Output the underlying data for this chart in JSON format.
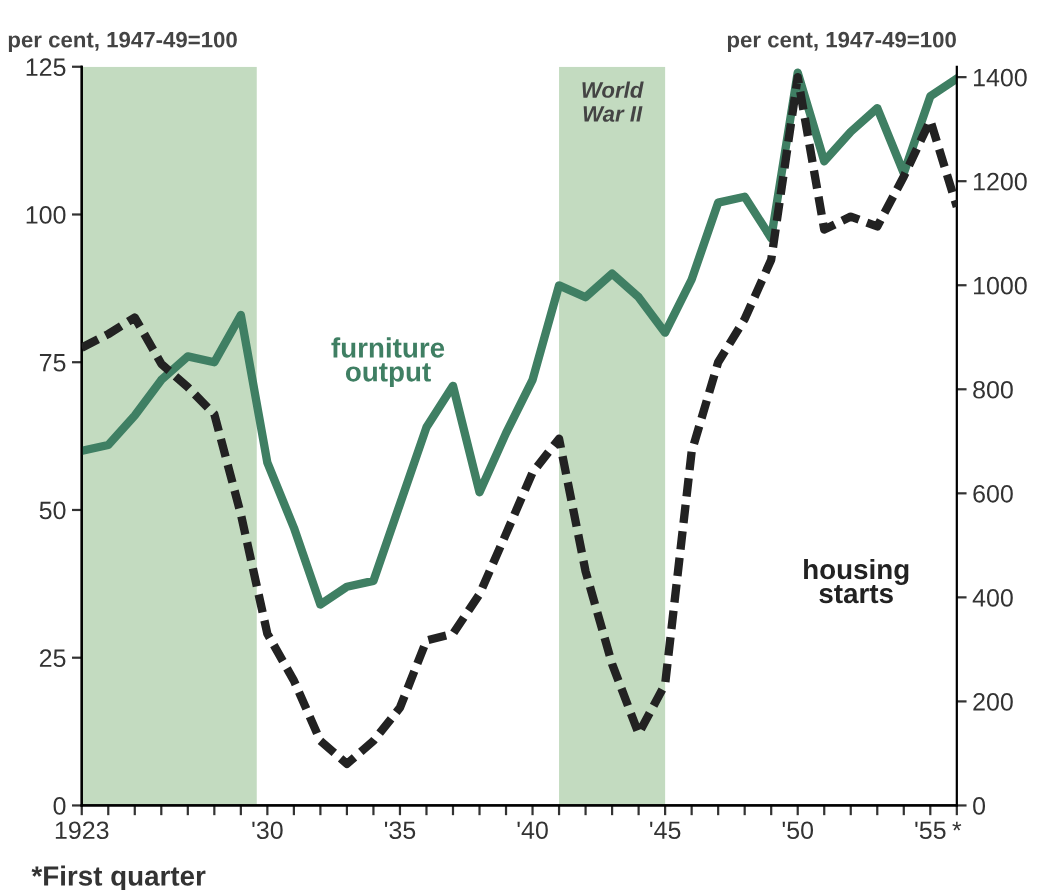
{
  "chart_data": {
    "type": "line",
    "ylabel": "per cent, 1947-49=100",
    "y2label": "per cent, 1947-49=100",
    "xlim": [
      1923,
      1956
    ],
    "xticks": [
      {
        "value": 1923,
        "label": "1923"
      },
      {
        "value": 1924,
        "label": null
      },
      {
        "value": 1925,
        "label": null
      },
      {
        "value": 1926,
        "label": null
      },
      {
        "value": 1927,
        "label": null
      },
      {
        "value": 1928,
        "label": null
      },
      {
        "value": 1929,
        "label": null
      },
      {
        "value": 1930,
        "label": "'30"
      },
      {
        "value": 1931,
        "label": null
      },
      {
        "value": 1932,
        "label": null
      },
      {
        "value": 1933,
        "label": null
      },
      {
        "value": 1934,
        "label": null
      },
      {
        "value": 1935,
        "label": "'35"
      },
      {
        "value": 1936,
        "label": null
      },
      {
        "value": 1937,
        "label": null
      },
      {
        "value": 1938,
        "label": null
      },
      {
        "value": 1939,
        "label": null
      },
      {
        "value": 1940,
        "label": "'40"
      },
      {
        "value": 1941,
        "label": null
      },
      {
        "value": 1942,
        "label": null
      },
      {
        "value": 1943,
        "label": null
      },
      {
        "value": 1944,
        "label": null
      },
      {
        "value": 1945,
        "label": "'45"
      },
      {
        "value": 1946,
        "label": null
      },
      {
        "value": 1947,
        "label": null
      },
      {
        "value": 1948,
        "label": null
      },
      {
        "value": 1949,
        "label": null
      },
      {
        "value": 1950,
        "label": "'50"
      },
      {
        "value": 1951,
        "label": null
      },
      {
        "value": 1952,
        "label": null
      },
      {
        "value": 1953,
        "label": null
      },
      {
        "value": 1954,
        "label": null
      },
      {
        "value": 1955,
        "label": "'55"
      },
      {
        "value": 1956,
        "label": "*"
      }
    ],
    "ylim": [
      0,
      125
    ],
    "yticks": [
      0,
      25,
      50,
      75,
      100,
      125
    ],
    "y2lim": [
      0,
      1420
    ],
    "y2ticks": [
      0,
      200,
      400,
      600,
      800,
      1000,
      1200,
      1400
    ],
    "x": [
      1923,
      1924,
      1925,
      1926,
      1927,
      1928,
      1929,
      1930,
      1931,
      1932,
      1933,
      1934,
      1935,
      1936,
      1937,
      1938,
      1939,
      1940,
      1941,
      1942,
      1943,
      1944,
      1945,
      1946,
      1947,
      1948,
      1949,
      1950,
      1951,
      1952,
      1953,
      1954,
      1955,
      1956
    ],
    "series": [
      {
        "name": "furniture output",
        "color": "#3f7f63",
        "line_style": "solid",
        "values": [
          60,
          61,
          66,
          72,
          76,
          75,
          83,
          58,
          47,
          34,
          37,
          38,
          51,
          64,
          71,
          53,
          63,
          72,
          88,
          86,
          90,
          86,
          80,
          89,
          102,
          103,
          96,
          124,
          109,
          114,
          118,
          107,
          120,
          123
        ]
      },
      {
        "name": "housing starts",
        "color": "#222222",
        "line_style": "dashed",
        "axis": "y2",
        "values": [
          880,
          906,
          938,
          849,
          804,
          752,
          560,
          330,
          240,
          124,
          80,
          124,
          188,
          317,
          330,
          406,
          522,
          640,
          705,
          450,
          272,
          138,
          233,
          680,
          852,
          935,
          1049,
          1400,
          1107,
          1132,
          1113,
          1209,
          1317,
          1151
        ]
      }
    ],
    "bands": [
      {
        "axis": "x",
        "from": 1923,
        "to": 1929.6,
        "color": "#c3dbc0"
      },
      {
        "axis": "x",
        "from": 1941,
        "to": 1945,
        "label": "World War II",
        "color": "#c3dbc0"
      }
    ],
    "grid": false,
    "legend": false,
    "marker": "none",
    "annotations": [
      "*First quarter"
    ]
  }
}
